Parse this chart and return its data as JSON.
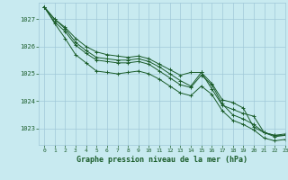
{
  "background_color": "#c8eaf0",
  "grid_color": "#a0c8d8",
  "line_color": "#1a5c2a",
  "title": "Graphe pression niveau de la mer (hPa)",
  "tick_color": "#1a5c2a",
  "ylim": [
    1022.4,
    1027.6
  ],
  "xlim": [
    -0.5,
    23
  ],
  "yticks": [
    1023,
    1024,
    1025,
    1026,
    1027
  ],
  "xticks": [
    0,
    1,
    2,
    3,
    4,
    5,
    6,
    7,
    8,
    9,
    10,
    11,
    12,
    13,
    14,
    15,
    16,
    17,
    18,
    19,
    20,
    21,
    22,
    23
  ],
  "series": [
    [
      1027.45,
      1027.0,
      1026.7,
      1026.3,
      1026.0,
      1025.8,
      1025.7,
      1025.65,
      1025.6,
      1025.65,
      1025.55,
      1025.35,
      1025.15,
      1024.95,
      1025.05,
      1025.05,
      1024.65,
      1024.05,
      1023.95,
      1023.75,
      1023.05,
      1022.85,
      1022.75,
      1022.8
    ],
    [
      1027.45,
      1027.0,
      1026.65,
      1026.15,
      1025.85,
      1025.6,
      1025.55,
      1025.5,
      1025.5,
      1025.55,
      1025.45,
      1025.25,
      1025.0,
      1024.75,
      1024.55,
      1025.05,
      1024.45,
      1023.85,
      1023.7,
      1023.55,
      1023.45,
      1022.85,
      1022.7,
      1022.75
    ],
    [
      1027.45,
      1026.9,
      1026.55,
      1026.05,
      1025.75,
      1025.5,
      1025.45,
      1025.4,
      1025.4,
      1025.45,
      1025.35,
      1025.1,
      1024.85,
      1024.6,
      1024.5,
      1024.95,
      1024.6,
      1023.9,
      1023.5,
      1023.35,
      1023.15,
      1022.85,
      1022.75,
      1022.75
    ],
    [
      1027.45,
      1026.85,
      1026.3,
      1025.7,
      1025.4,
      1025.1,
      1025.05,
      1025.0,
      1025.05,
      1025.1,
      1025.0,
      1024.8,
      1024.55,
      1024.3,
      1024.2,
      1024.55,
      1024.25,
      1023.65,
      1023.3,
      1023.15,
      1022.95,
      1022.65,
      1022.55,
      1022.6
    ]
  ]
}
